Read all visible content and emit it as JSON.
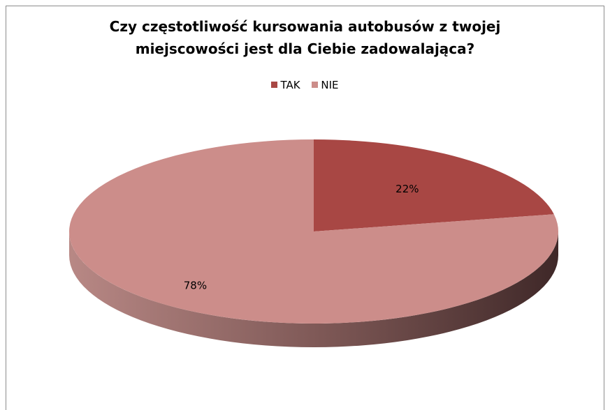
{
  "chart_data": {
    "type": "pie",
    "style": "3d",
    "title_lines": [
      "Czy częstotliwość kursowania autobusów z twojej",
      "miejscowości jest dla Ciebie zadowalająca?"
    ],
    "categories": [
      "TAK",
      "NIE"
    ],
    "values": [
      22,
      78
    ],
    "data_labels": [
      "22%",
      "78%"
    ],
    "colors": [
      "#a84744",
      "#cc8d8a"
    ],
    "side_colors": [
      "#7a3231",
      "#4f3434"
    ],
    "legend_position": "top"
  }
}
